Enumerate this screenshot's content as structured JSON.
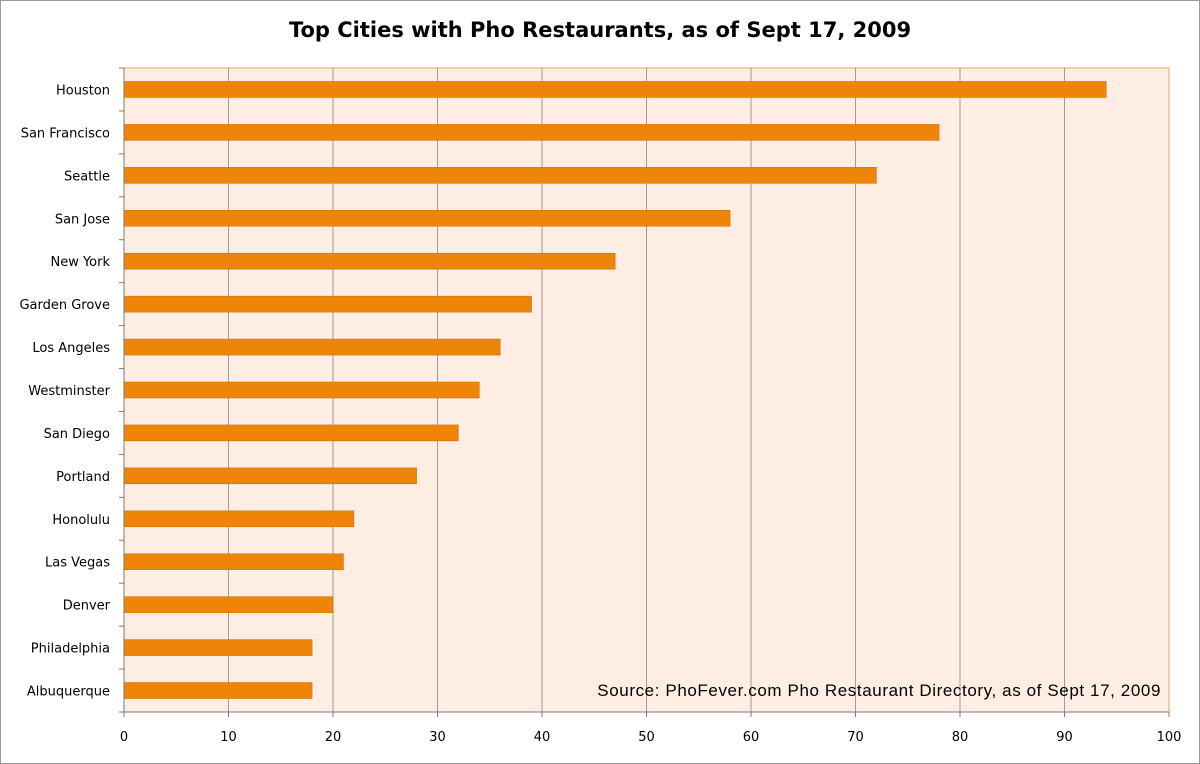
{
  "chart_data": {
    "type": "bar",
    "orientation": "horizontal",
    "title": "Top Cities with Pho Restaurants, as of Sept 17, 2009",
    "categories": [
      "Houston",
      "San Francisco",
      "Seattle",
      "San Jose",
      "New York",
      "Garden Grove",
      "Los Angeles",
      "Westminster",
      "San Diego",
      "Portland",
      "Honolulu",
      "Las Vegas",
      "Denver",
      "Philadelphia",
      "Albuquerque"
    ],
    "values": [
      94,
      78,
      72,
      58,
      47,
      39,
      36,
      34,
      32,
      28,
      22,
      21,
      20,
      18,
      18
    ],
    "xlim": [
      0,
      100
    ],
    "xticks": [
      0,
      10,
      20,
      30,
      40,
      50,
      60,
      70,
      80,
      90,
      100
    ],
    "xlabel": "",
    "ylabel": "",
    "grid": "vertical",
    "legend": "none",
    "annotation": "Source: PhoFever.com Pho Restaurant Directory, as of Sept 17, 2009",
    "colors": {
      "bar": "#ee8408",
      "bar_edge": "#c96d00",
      "plot_background": "#fdede2",
      "plot_border": "#f0a35a",
      "gridline": "#9c9c9c"
    }
  }
}
